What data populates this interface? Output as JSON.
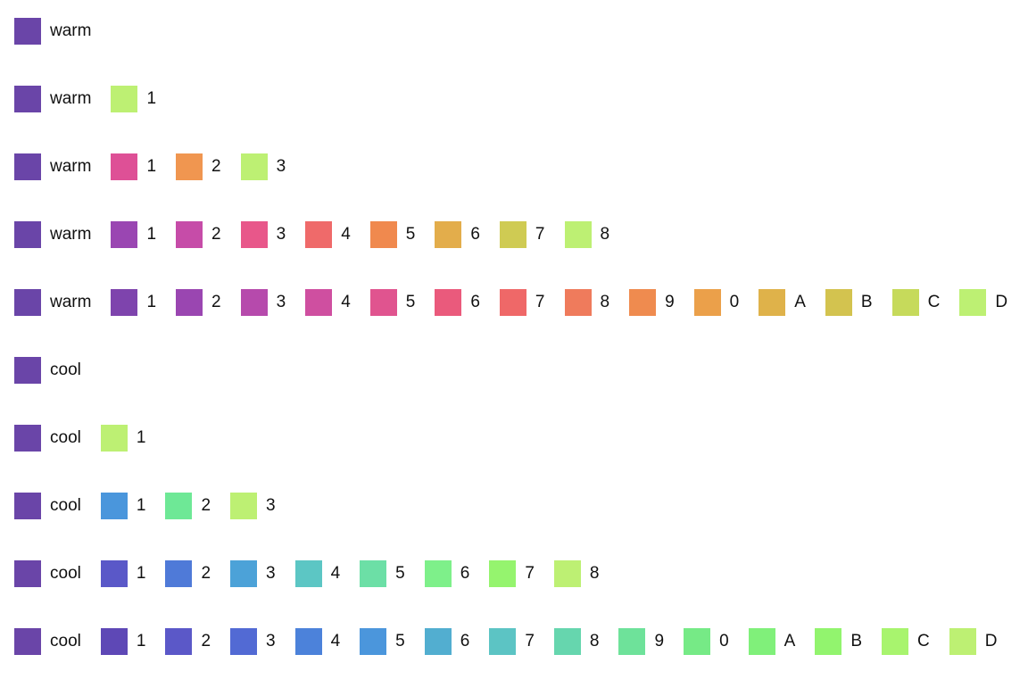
{
  "rows": [
    {
      "items": [
        {
          "label": "warm",
          "color": "#6a45a8"
        }
      ]
    },
    {
      "items": [
        {
          "label": "warm",
          "color": "#6a45a8"
        },
        {
          "label": "1",
          "color": "#bdf073"
        }
      ]
    },
    {
      "items": [
        {
          "label": "warm",
          "color": "#6a45a8"
        },
        {
          "label": "1",
          "color": "#de5096"
        },
        {
          "label": "2",
          "color": "#f09650"
        },
        {
          "label": "3",
          "color": "#bdf073"
        }
      ]
    },
    {
      "items": [
        {
          "label": "warm",
          "color": "#6a45a8"
        },
        {
          "label": "1",
          "color": "#9a46b2"
        },
        {
          "label": "2",
          "color": "#c64ca8"
        },
        {
          "label": "3",
          "color": "#e8578a"
        },
        {
          "label": "4",
          "color": "#ef6a6a"
        },
        {
          "label": "5",
          "color": "#f0894e"
        },
        {
          "label": "6",
          "color": "#e3ad4b"
        },
        {
          "label": "7",
          "color": "#cfcb53"
        },
        {
          "label": "8",
          "color": "#bdf073"
        }
      ]
    },
    {
      "items": [
        {
          "label": "warm",
          "color": "#6a45a8"
        },
        {
          "label": "1",
          "color": "#7e44ad"
        },
        {
          "label": "2",
          "color": "#9a46b1"
        },
        {
          "label": "3",
          "color": "#b64aac"
        },
        {
          "label": "4",
          "color": "#cf4fa0"
        },
        {
          "label": "5",
          "color": "#e0548f"
        },
        {
          "label": "6",
          "color": "#ea5a7c"
        },
        {
          "label": "7",
          "color": "#ef6868"
        },
        {
          "label": "8",
          "color": "#ef7b5c"
        },
        {
          "label": "9",
          "color": "#ef8b4f"
        },
        {
          "label": "0",
          "color": "#eba04a"
        },
        {
          "label": "A",
          "color": "#dfb24a"
        },
        {
          "label": "B",
          "color": "#d3c34f"
        },
        {
          "label": "C",
          "color": "#c6da5b"
        },
        {
          "label": "D",
          "color": "#bdf073"
        }
      ]
    },
    {
      "items": [
        {
          "label": "cool",
          "color": "#6a45a8"
        }
      ]
    },
    {
      "items": [
        {
          "label": "cool",
          "color": "#6a45a8"
        },
        {
          "label": "1",
          "color": "#bdf073"
        }
      ]
    },
    {
      "items": [
        {
          "label": "cool",
          "color": "#6a45a8"
        },
        {
          "label": "1",
          "color": "#4a96dc"
        },
        {
          "label": "2",
          "color": "#6ee896"
        },
        {
          "label": "3",
          "color": "#bdf073"
        }
      ]
    },
    {
      "items": [
        {
          "label": "cool",
          "color": "#6a45a8"
        },
        {
          "label": "1",
          "color": "#5a58c8"
        },
        {
          "label": "2",
          "color": "#4f7ad8"
        },
        {
          "label": "3",
          "color": "#4ca2d8"
        },
        {
          "label": "4",
          "color": "#5cc6c4"
        },
        {
          "label": "5",
          "color": "#6cdfa6"
        },
        {
          "label": "6",
          "color": "#7ef08a"
        },
        {
          "label": "7",
          "color": "#95f46e"
        },
        {
          "label": "8",
          "color": "#bdf073"
        }
      ]
    },
    {
      "items": [
        {
          "label": "cool",
          "color": "#6a45a8"
        },
        {
          "label": "1",
          "color": "#5e48b6"
        },
        {
          "label": "2",
          "color": "#5b58c8"
        },
        {
          "label": "3",
          "color": "#526ad4"
        },
        {
          "label": "4",
          "color": "#4c82da"
        },
        {
          "label": "5",
          "color": "#4b96dc"
        },
        {
          "label": "6",
          "color": "#52aed0"
        },
        {
          "label": "7",
          "color": "#5cc4c4"
        },
        {
          "label": "8",
          "color": "#66d6ae"
        },
        {
          "label": "9",
          "color": "#6ee29a"
        },
        {
          "label": "0",
          "color": "#76ea86"
        },
        {
          "label": "A",
          "color": "#80f07a"
        },
        {
          "label": "B",
          "color": "#92f46e"
        },
        {
          "label": "C",
          "color": "#a8f46e"
        },
        {
          "label": "D",
          "color": "#bdf073"
        }
      ]
    }
  ]
}
